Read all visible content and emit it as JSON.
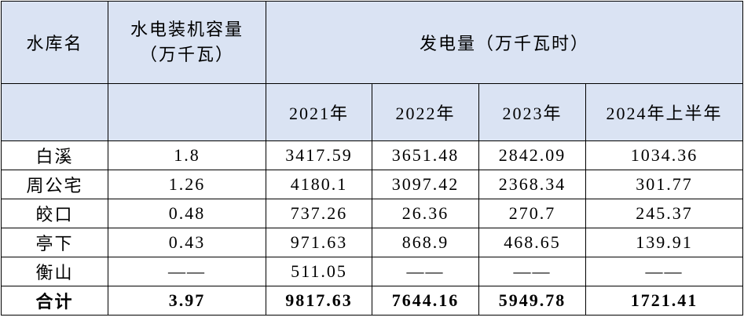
{
  "header": {
    "reservoir": "水库名",
    "capacity": [
      "水电装机容量",
      "（万千瓦）"
    ],
    "generation": "发电量（万千瓦时）",
    "years": [
      "2021年",
      "2022年",
      "2023年",
      "2024年上半年"
    ]
  },
  "table": {
    "rows": [
      [
        "白溪",
        "1.8",
        "3417.59",
        "3651.48",
        "2842.09",
        "1034.36"
      ],
      [
        "周公宅",
        "1.26",
        "4180.1",
        "3097.42",
        "2368.34",
        "301.77"
      ],
      [
        "皎口",
        "0.48",
        "737.26",
        "26.36",
        "270.7",
        "245.37"
      ],
      [
        "亭下",
        "0.43",
        "971.63",
        "868.9",
        "468.65",
        "139.91"
      ],
      [
        "衡山",
        "——",
        "511.05",
        "——",
        "——",
        "——"
      ]
    ],
    "total": [
      "合计",
      "3.97",
      "9817.63",
      "7644.16",
      "5949.78",
      "1721.41"
    ]
  }
}
